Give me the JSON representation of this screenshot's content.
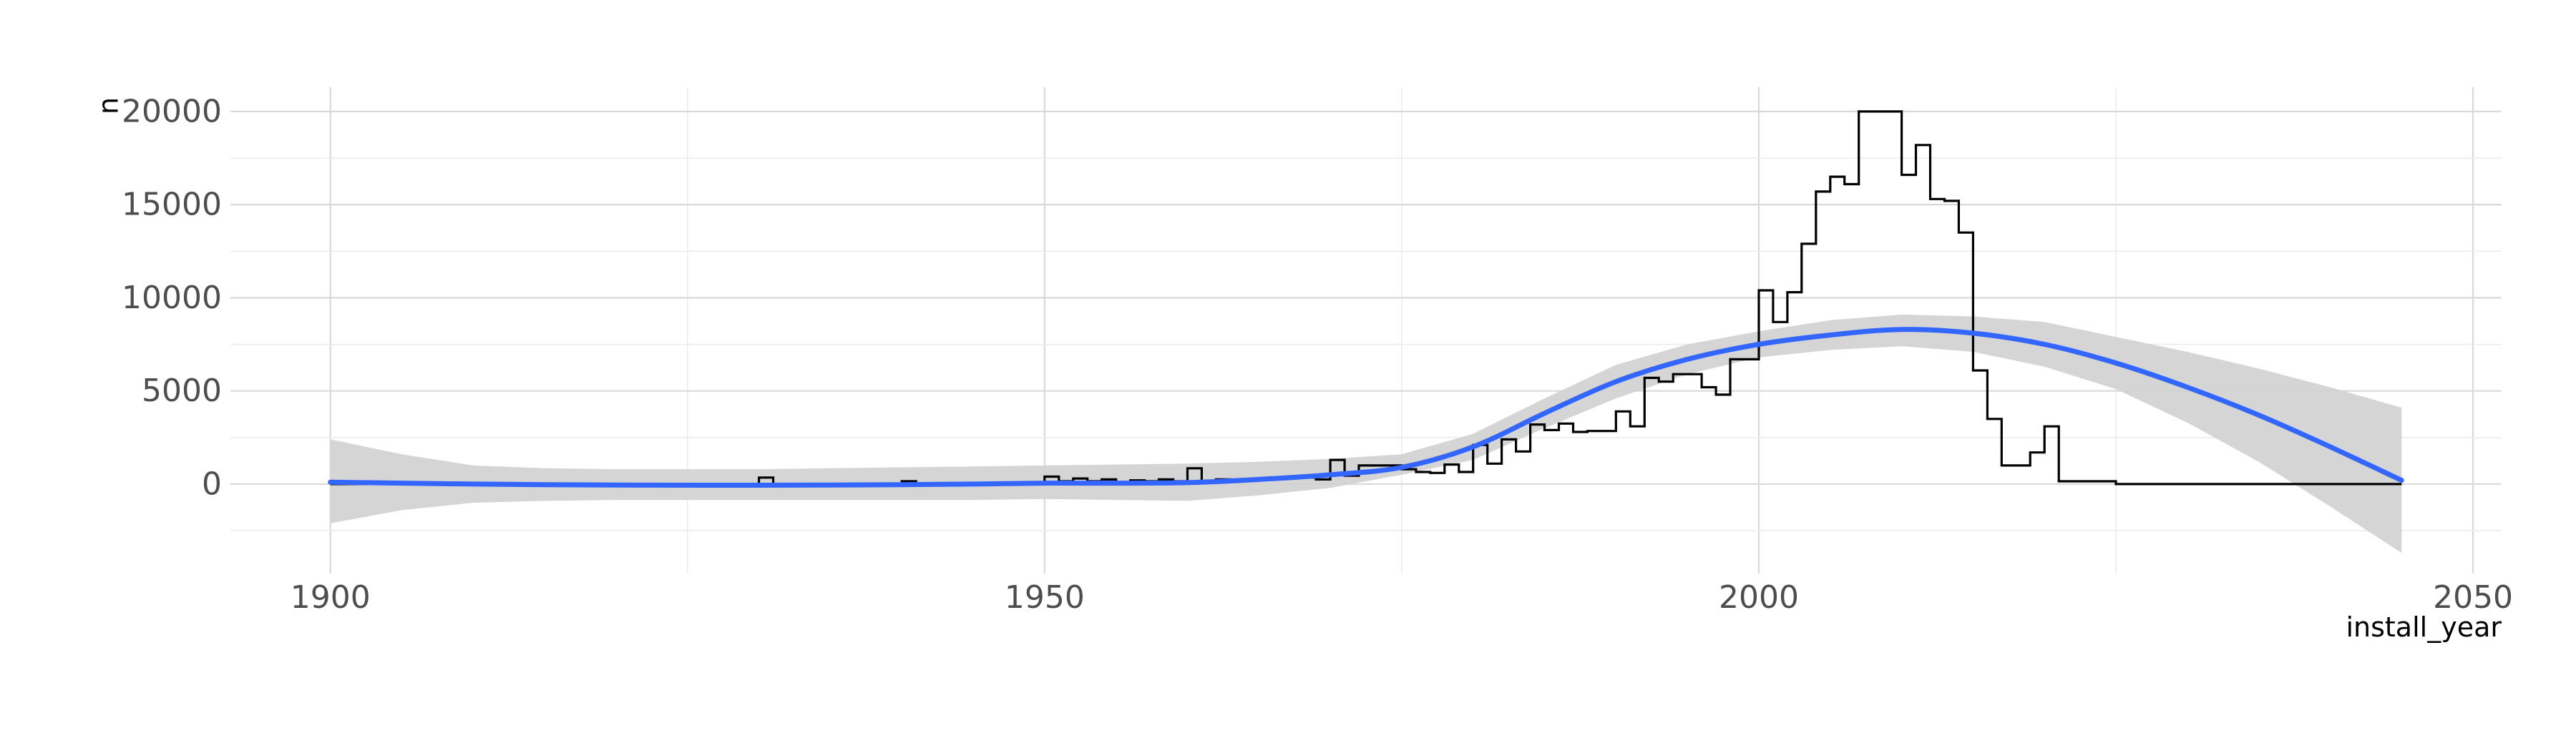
{
  "chart_data": {
    "type": "line",
    "title": "",
    "xlabel": "install_year",
    "ylabel": "n",
    "xlim": [
      1893,
      2052
    ],
    "ylim": [
      -4800,
      21300
    ],
    "x_ticks": [
      1900,
      1950,
      2000,
      2050
    ],
    "y_ticks": [
      0,
      5000,
      10000,
      15000,
      20000
    ],
    "grid": true,
    "legend": "none",
    "colors": {
      "histogram": "#000000",
      "smooth_line": "#3366ff",
      "confidence_band": "#d3d3d3",
      "grid": "#d9d9d9"
    },
    "series": [
      {
        "kind": "step",
        "x": [
          1900,
          1901,
          1902,
          1903,
          1904,
          1905,
          1906,
          1907,
          1908,
          1909,
          1910,
          1911,
          1912,
          1913,
          1914,
          1915,
          1916,
          1917,
          1918,
          1919,
          1920,
          1921,
          1922,
          1923,
          1924,
          1925,
          1926,
          1927,
          1928,
          1929,
          1930,
          1931,
          1932,
          1933,
          1934,
          1935,
          1936,
          1937,
          1938,
          1939,
          1940,
          1941,
          1942,
          1943,
          1944,
          1945,
          1946,
          1947,
          1948,
          1949,
          1950,
          1951,
          1952,
          1953,
          1954,
          1955,
          1956,
          1957,
          1958,
          1959,
          1960,
          1961,
          1962,
          1963,
          1964,
          1965,
          1966,
          1967,
          1968,
          1969,
          1970,
          1971,
          1972,
          1973,
          1974,
          1975,
          1976,
          1977,
          1978,
          1979,
          1980,
          1981,
          1982,
          1983,
          1984,
          1985,
          1986,
          1987,
          1988,
          1989,
          1990,
          1991,
          1992,
          1993,
          1994,
          1995,
          1996,
          1997,
          1998,
          1999,
          2000,
          2001,
          2002,
          2003,
          2004,
          2005,
          2006,
          2007,
          2008,
          2009,
          2010,
          2011,
          2012,
          2013,
          2014,
          2015,
          2016,
          2017,
          2018,
          2019,
          2020,
          2021,
          2022,
          2023,
          2024,
          2025,
          2026,
          2027,
          2028,
          2029,
          2030,
          2031,
          2032,
          2033,
          2034,
          2035,
          2036,
          2037,
          2038,
          2039,
          2040,
          2041,
          2042,
          2043,
          2044,
          2045
        ],
        "values": [
          0,
          0,
          0,
          0,
          0,
          0,
          0,
          0,
          0,
          0,
          0,
          0,
          0,
          0,
          0,
          0,
          0,
          0,
          0,
          0,
          0,
          0,
          0,
          0,
          0,
          0,
          0,
          0,
          0,
          0,
          350,
          0,
          0,
          0,
          0,
          0,
          0,
          0,
          0,
          0,
          150,
          0,
          0,
          0,
          0,
          0,
          0,
          0,
          0,
          0,
          400,
          150,
          300,
          150,
          250,
          100,
          200,
          150,
          250,
          150,
          850,
          150,
          250,
          200,
          250,
          250,
          300,
          350,
          350,
          250,
          1300,
          450,
          1000,
          1000,
          1000,
          800,
          650,
          600,
          1050,
          650,
          2100,
          1100,
          2400,
          1750,
          3200,
          2900,
          3250,
          2800,
          2850,
          2850,
          3900,
          3100,
          5700,
          5500,
          5900,
          5900,
          5200,
          4800,
          6700,
          6700,
          10400,
          8700,
          10300,
          12900,
          15700,
          16500,
          16100,
          20000,
          20000,
          20000,
          16600,
          18200,
          15300,
          15200,
          13500,
          6100,
          3500,
          1000,
          1000,
          1700,
          3100,
          150,
          150,
          150,
          150,
          0,
          0,
          0,
          0,
          0,
          0,
          0,
          0,
          0,
          0,
          0,
          0,
          0,
          0,
          0,
          0,
          0,
          0,
          0,
          0,
          0
        ]
      },
      {
        "kind": "smooth",
        "x": [
          1900,
          1905,
          1910,
          1915,
          1920,
          1925,
          1930,
          1935,
          1940,
          1945,
          1950,
          1955,
          1960,
          1965,
          1970,
          1975,
          1980,
          1985,
          1990,
          1995,
          2000,
          2005,
          2010,
          2015,
          2020,
          2025,
          2030,
          2035,
          2040,
          2045
        ],
        "values": [
          100,
          50,
          0,
          -30,
          -50,
          -60,
          -60,
          -50,
          -30,
          0,
          50,
          50,
          80,
          250,
          500,
          900,
          2000,
          3800,
          5500,
          6700,
          7500,
          8000,
          8300,
          8100,
          7500,
          6500,
          5200,
          3700,
          2000,
          200
        ],
        "band_low": [
          -2100,
          -1400,
          -1000,
          -900,
          -850,
          -850,
          -850,
          -850,
          -850,
          -850,
          -800,
          -850,
          -900,
          -600,
          -200,
          500,
          1300,
          3000,
          4600,
          5900,
          6800,
          7200,
          7400,
          7100,
          6300,
          5100,
          3300,
          1200,
          -1200,
          -3700
        ],
        "band_high": [
          2400,
          1600,
          1000,
          850,
          800,
          800,
          800,
          850,
          900,
          950,
          1000,
          1050,
          1100,
          1200,
          1350,
          1600,
          2700,
          4600,
          6400,
          7500,
          8200,
          8800,
          9100,
          9000,
          8700,
          7900,
          7100,
          6200,
          5200,
          4100
        ]
      }
    ]
  }
}
